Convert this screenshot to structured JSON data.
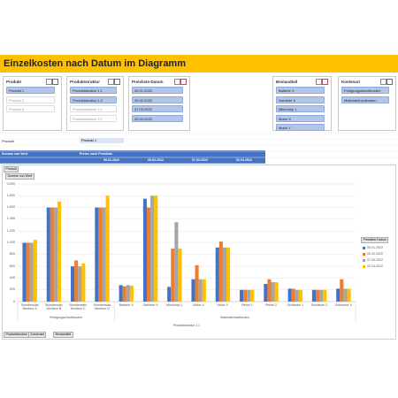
{
  "title": "Einzelkosten nach Datum im Diagramm",
  "slicers": [
    {
      "title": "Produkt",
      "items": [
        "Produkt 1",
        "Produkt 2",
        "Produkt 3"
      ],
      "selected": [
        true,
        false,
        false
      ]
    },
    {
      "title": "Produktstruktur",
      "items": [
        "Produktstruktur 1.1",
        "Produktstruktur 1.2",
        "Produktstruktur 2.1",
        "Produktstruktur 3.1"
      ],
      "selected": [
        true,
        true,
        false,
        false
      ]
    },
    {
      "title": "Preisliste-Datum",
      "items": [
        "05.01.2022",
        "05.02.2022",
        "07.03.2022",
        "02.04.2022"
      ],
      "selected": [
        true,
        true,
        true,
        true
      ]
    },
    {
      "title": "Bestandteil",
      "items": [
        "Batterie X",
        "Getriebe X",
        "Mikrochip 1",
        "Motor X",
        "Motor Y"
      ],
      "selected": [
        true,
        true,
        true,
        true,
        true
      ]
    },
    {
      "title": "Kostenart",
      "items": [
        "Fertigungseinzelkosten",
        "Materialeinzelkosten"
      ],
      "selected": [
        true,
        true
      ]
    }
  ],
  "filter": {
    "label": "Produkt",
    "value": "Produkt 1"
  },
  "pivot_header": {
    "measure": "Summe von Wert",
    "column_field": "Preise nach Preisliste",
    "columns": [
      "05.01.2022",
      "05.02.2022",
      "07.03.2022",
      "02.04.2022"
    ]
  },
  "chart_buttons": {
    "filter": "Produkt",
    "value_field": "Summe von Wert",
    "axis_fields": [
      "Produktstruktur",
      "Kostenart",
      "Bestandteil"
    ]
  },
  "chart_data": {
    "type": "bar",
    "categories": [
      "Stundensatz Monteur A",
      "Stundensatz Monteur B",
      "Stundensatz Monteur C",
      "Stundensatz Monteur D",
      "Batterie X",
      "Getriebe X",
      "Mikrochip 1",
      "Motor X",
      "Motor Y",
      "Pleuel 1",
      "Pleuel 2",
      "Schraube 1",
      "Schraube 2",
      "Schraube X"
    ],
    "groups": [
      {
        "name": "Fertigungseinzelkosten",
        "size": 4
      },
      {
        "name": "Materialeinzelkosten",
        "size": 10
      }
    ],
    "outer_group": "Produktstruktur 1.1",
    "legend_title": "Preisliste-Datum",
    "series": [
      {
        "name": "05.01.2022",
        "color": "#4472c4",
        "values": [
          1000,
          1600,
          600,
          1600,
          280,
          1750,
          250,
          380,
          920,
          200,
          300,
          220,
          200,
          220
        ]
      },
      {
        "name": "05.02.2022",
        "color": "#ed7d31",
        "values": [
          1000,
          1600,
          700,
          1600,
          260,
          1600,
          900,
          620,
          1020,
          200,
          380,
          220,
          200,
          380
        ]
      },
      {
        "name": "07.03.2022",
        "color": "#a5a5a5",
        "values": [
          1000,
          1600,
          600,
          1600,
          280,
          1800,
          1350,
          380,
          920,
          200,
          330,
          200,
          200,
          220
        ]
      },
      {
        "name": "02.04.2022",
        "color": "#ffc000",
        "values": [
          1050,
          1700,
          650,
          1800,
          270,
          1800,
          900,
          380,
          920,
          200,
          330,
          200,
          200,
          220
        ]
      }
    ],
    "ylim": [
      0,
      2000
    ],
    "yticks": [
      0,
      200,
      400,
      600,
      800,
      {
        "value": 1000,
        "label": "1.000"
      },
      {
        "value": 1200,
        "label": "1.200"
      },
      {
        "value": 1400,
        "label": "1.400"
      },
      {
        "value": 1600,
        "label": "1.600"
      },
      {
        "value": 1800,
        "label": "1.800"
      },
      {
        "value": 2000,
        "label": "2.000"
      }
    ],
    "grid": true
  }
}
